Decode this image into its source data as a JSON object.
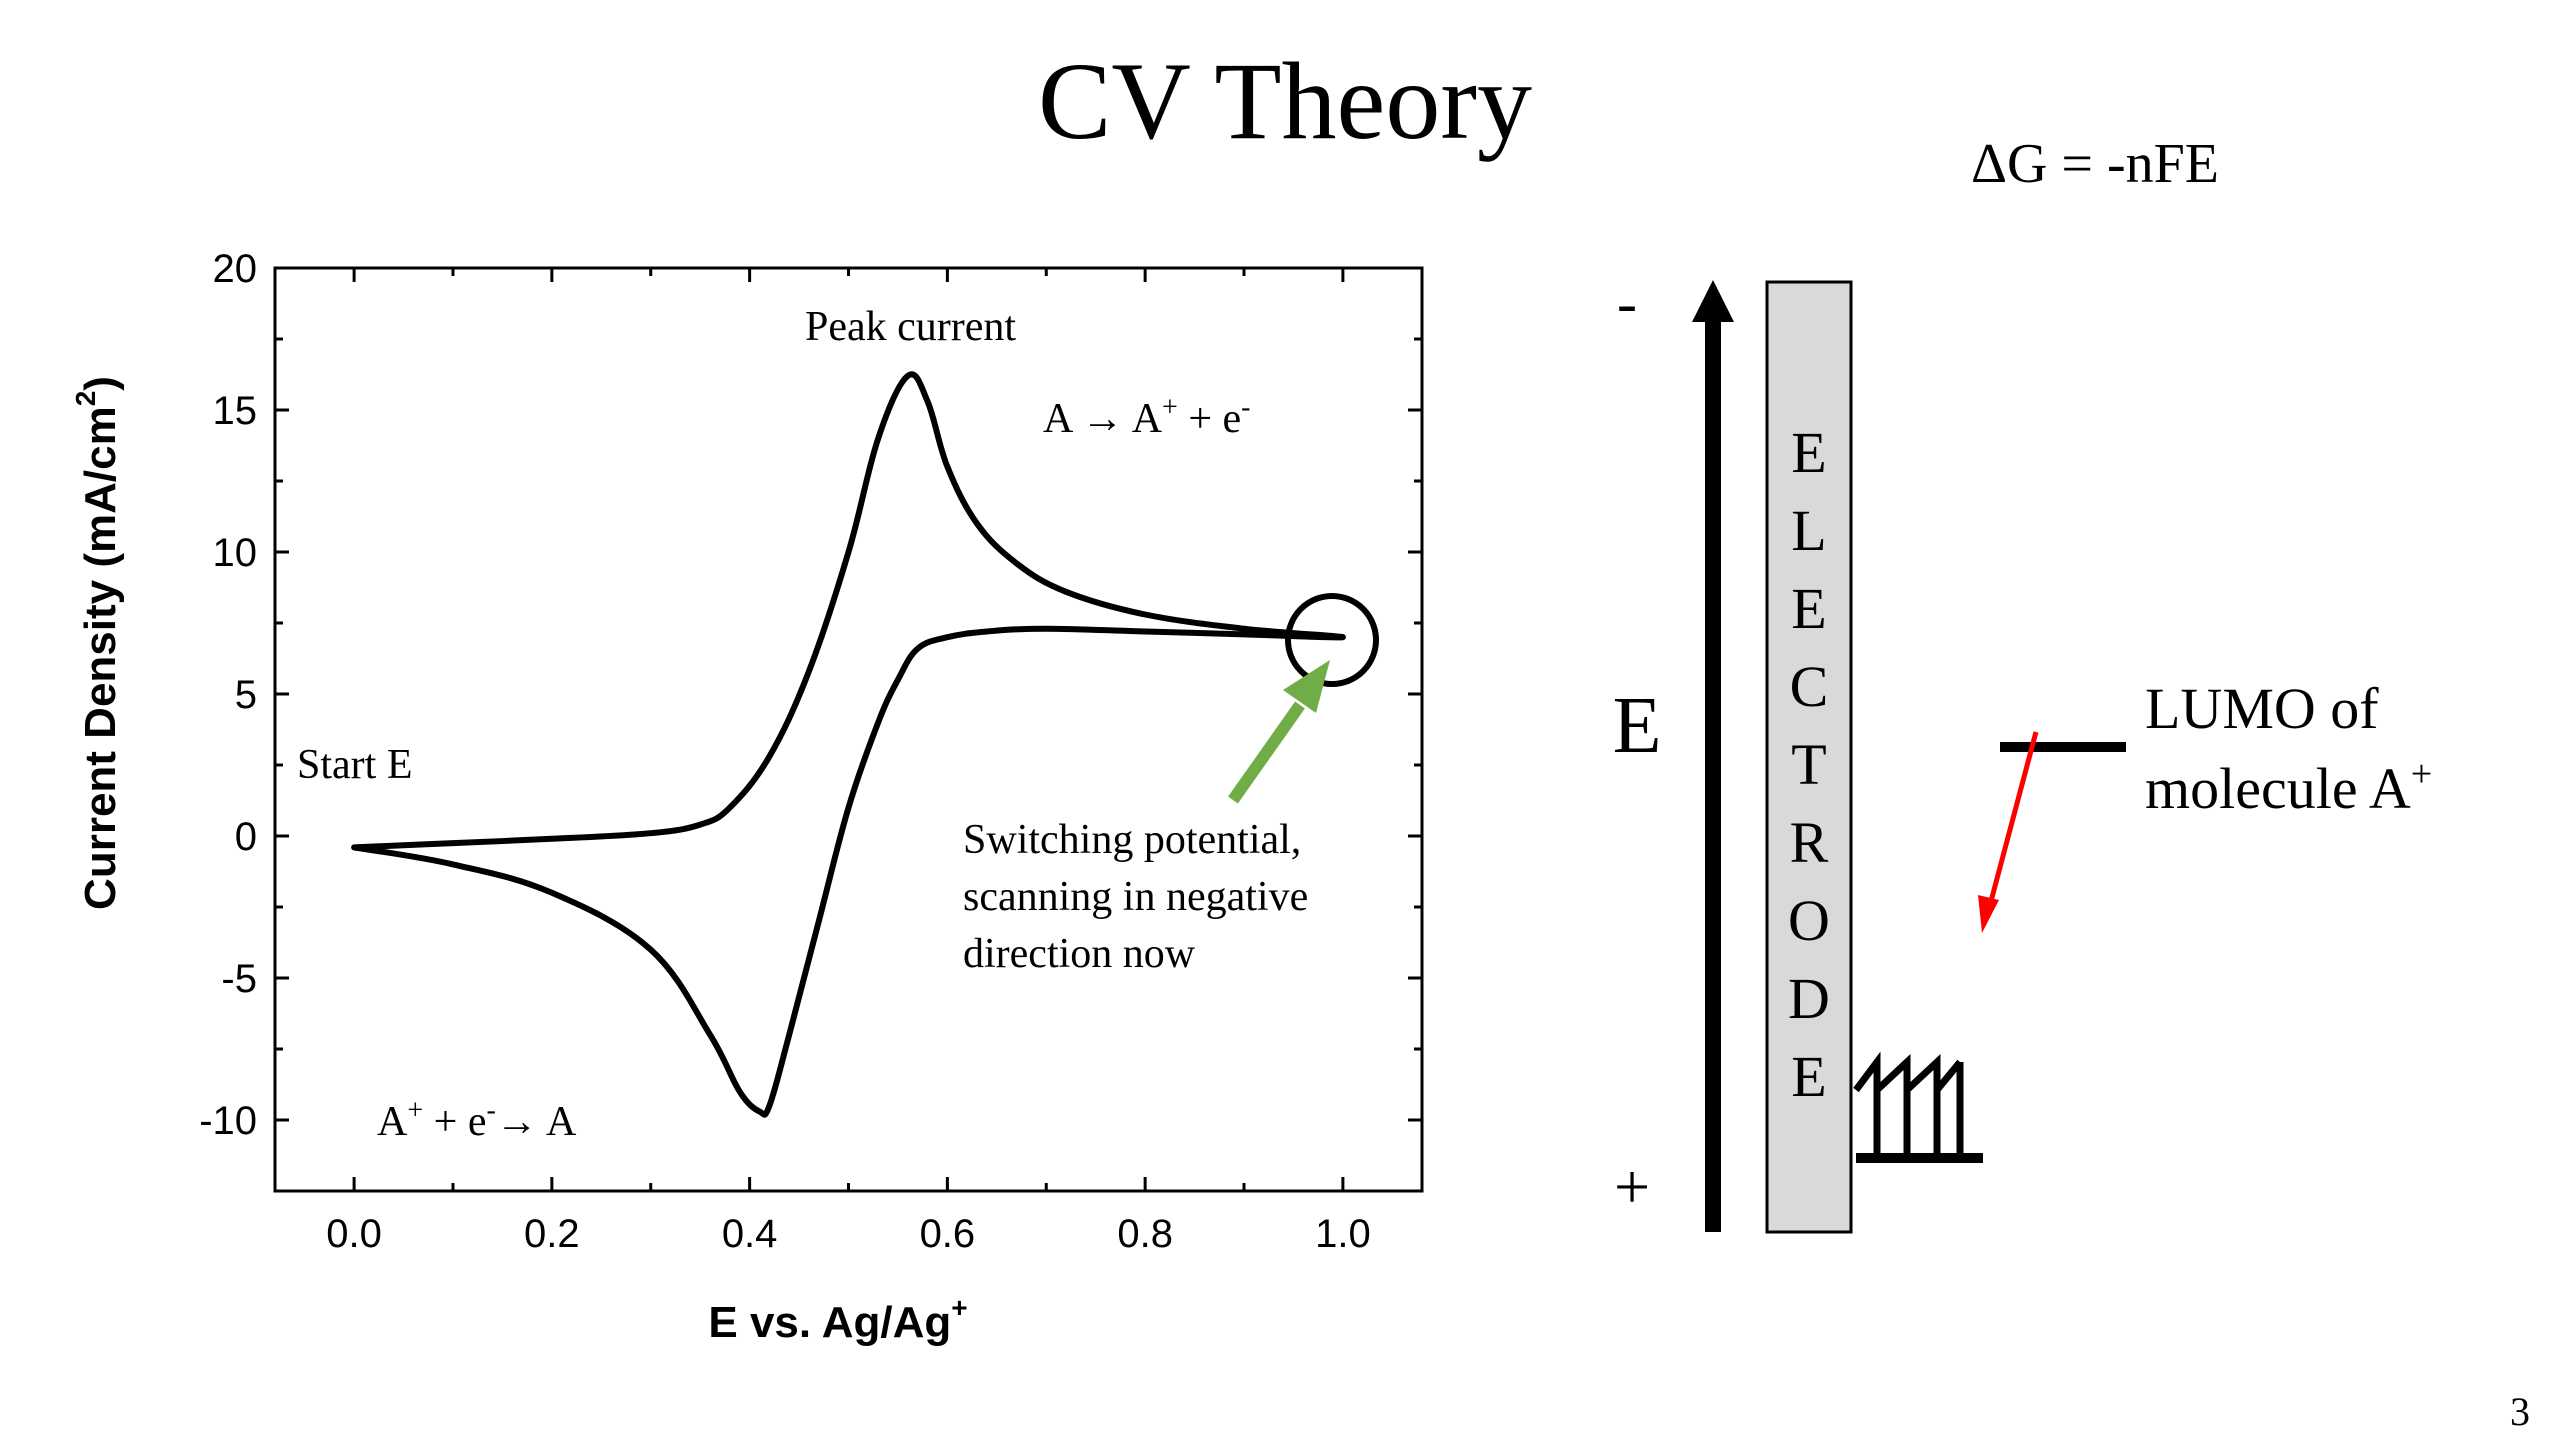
{
  "slide": {
    "title": "CV Theory",
    "page_number": "3",
    "equation": "ΔG = -nFE"
  },
  "chart_data": {
    "type": "line",
    "title": "",
    "xlabel": "E vs. Ag/Ag",
    "xlabel_superscript": "+",
    "ylabel": "Current Density (mA/cm",
    "ylabel_superscript": "2",
    "ylabel_suffix": ")",
    "xlim": [
      -0.08,
      1.08
    ],
    "ylim": [
      -12.5,
      20
    ],
    "x_ticks": [
      0.0,
      0.2,
      0.4,
      0.6,
      0.8,
      1.0
    ],
    "x_tick_labels": [
      "0.0",
      "0.2",
      "0.4",
      "0.6",
      "0.8",
      "1.0"
    ],
    "y_ticks": [
      -10,
      -5,
      0,
      5,
      10,
      15,
      20
    ],
    "y_tick_labels": [
      "-10",
      "-5",
      "0",
      "5",
      "10",
      "15",
      "20"
    ],
    "grid": false,
    "series": [
      {
        "points": [
          [
            0.0,
            -0.4
          ],
          [
            0.1,
            -0.25
          ],
          [
            0.2,
            -0.1
          ],
          [
            0.3,
            0.1
          ],
          [
            0.35,
            0.4
          ],
          [
            0.38,
            1.0
          ],
          [
            0.42,
            2.8
          ],
          [
            0.46,
            5.8
          ],
          [
            0.5,
            10.0
          ],
          [
            0.53,
            14.0
          ],
          [
            0.56,
            16.2
          ],
          [
            0.58,
            15.3
          ],
          [
            0.6,
            13.0
          ],
          [
            0.63,
            11.0
          ],
          [
            0.67,
            9.6
          ],
          [
            0.72,
            8.6
          ],
          [
            0.8,
            7.8
          ],
          [
            0.9,
            7.3
          ],
          [
            1.0,
            7.0
          ],
          [
            0.9,
            7.1
          ],
          [
            0.8,
            7.2
          ],
          [
            0.7,
            7.3
          ],
          [
            0.64,
            7.2
          ],
          [
            0.6,
            7.0
          ],
          [
            0.57,
            6.6
          ],
          [
            0.55,
            5.5
          ],
          [
            0.53,
            4.0
          ],
          [
            0.5,
            1.0
          ],
          [
            0.47,
            -3.0
          ],
          [
            0.44,
            -7.0
          ],
          [
            0.42,
            -9.5
          ],
          [
            0.41,
            -9.7
          ],
          [
            0.39,
            -9.0
          ],
          [
            0.36,
            -7.0
          ],
          [
            0.3,
            -4.0
          ],
          [
            0.2,
            -2.0
          ],
          [
            0.1,
            -1.0
          ],
          [
            0.0,
            -0.4
          ]
        ]
      }
    ],
    "annotations": {
      "peak_current": "Peak current",
      "oxidation_prefix": "A ",
      "oxidation_arrow": "→",
      "oxidation_product": " A",
      "oxidation_product_sup": "+",
      "oxidation_mid": " + e",
      "oxidation_e_sup": "-",
      "reduction_reactant": "A",
      "reduction_reactant_sup": "+",
      "reduction_mid": " + e",
      "reduction_e_sup": "-",
      "reduction_arrow": "→",
      "reduction_product": " A",
      "start_e": "Start E",
      "switching_line1": "Switching potential,",
      "switching_line2": "scanning in negative",
      "switching_line3": "direction now"
    },
    "colors": {
      "curve": "#000000",
      "switch_arrow": "#70ad47",
      "electron_arrow": "#ff0000"
    }
  },
  "diagram": {
    "minus_label": "-",
    "plus_label": "+",
    "axis_label": "E",
    "electrode_letters": [
      "E",
      "L",
      "E",
      "C",
      "T",
      "R",
      "O",
      "D",
      "E"
    ],
    "lumo_line1": "LUMO of",
    "lumo_line2": "molecule A",
    "lumo_sup": "+",
    "electrode_fill": "#d9d9d9"
  }
}
